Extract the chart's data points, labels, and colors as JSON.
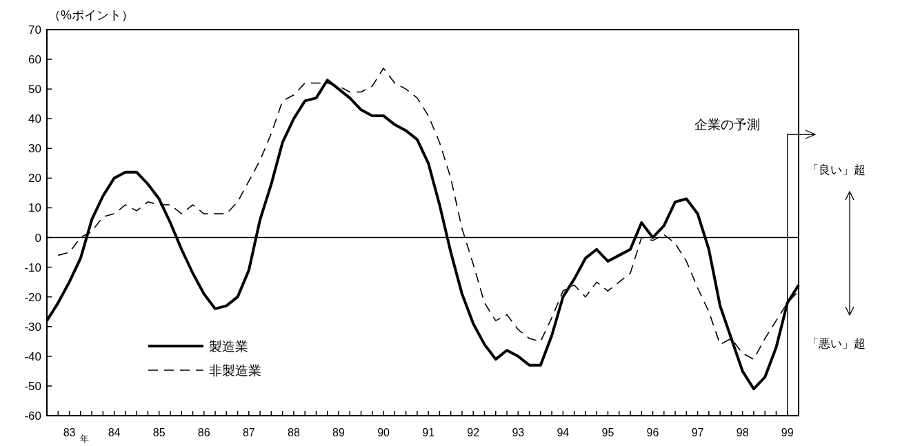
{
  "chart_data": {
    "type": "line",
    "ylabel": "（%ポイント）",
    "x": [
      83,
      83.25,
      83.5,
      83.75,
      84,
      84.25,
      84.5,
      84.75,
      85,
      85.25,
      85.5,
      85.75,
      86,
      86.25,
      86.5,
      86.75,
      87,
      87.25,
      87.5,
      87.75,
      88,
      88.25,
      88.5,
      88.75,
      89,
      89.25,
      89.5,
      89.75,
      90,
      90.25,
      90.5,
      90.75,
      91,
      91.25,
      91.5,
      91.75,
      92,
      92.25,
      92.5,
      92.75,
      93,
      93.25,
      93.5,
      93.75,
      94,
      94.25,
      94.5,
      94.75,
      95,
      95.25,
      95.5,
      95.75,
      96,
      96.25,
      96.5,
      96.75,
      97,
      97.25,
      97.5,
      97.75,
      98,
      98.25,
      98.5,
      98.75,
      99,
      99.25,
      99.5,
      99.75
    ],
    "series": [
      {
        "name": "製造業",
        "color": "#000000",
        "line_style": "solid",
        "values": [
          -28,
          -22,
          -15,
          -7,
          6,
          14,
          20,
          22,
          22,
          18,
          13,
          5,
          -4,
          -12,
          -19,
          -24,
          -23,
          -20,
          -11,
          6,
          18,
          32,
          40,
          46,
          47,
          53,
          50,
          47,
          43,
          41,
          41,
          38,
          36,
          33,
          25,
          11,
          -5,
          -19,
          -29,
          -36,
          -41,
          -38,
          -40,
          -43,
          -43,
          -33,
          -20,
          -14,
          -7,
          -4,
          -8,
          -6,
          -4,
          5,
          0,
          4,
          12,
          13,
          8,
          -4,
          -23,
          -34,
          -45,
          -51,
          -47,
          -37,
          -22,
          -16
        ]
      },
      {
        "name": "非製造業",
        "color": "#000000",
        "line_style": "dashed",
        "values": [
          null,
          -6,
          -5,
          0,
          2,
          7,
          8,
          11,
          9,
          12,
          11,
          11,
          8,
          11,
          8,
          8,
          8,
          12,
          19,
          26,
          35,
          46,
          48,
          52,
          52,
          52,
          51,
          49,
          49,
          51,
          57,
          52,
          50,
          47,
          41,
          32,
          20,
          3,
          -9,
          -22,
          -28,
          -26,
          -31,
          -34,
          -35,
          -27,
          -18,
          -16,
          -20,
          -15,
          -18,
          -15,
          -12,
          0,
          -1,
          1,
          -2,
          -8,
          -17,
          -25,
          -36,
          -34,
          -39,
          -41,
          -34,
          -28,
          -22,
          -18
        ]
      }
    ],
    "xlim": [
      83,
      99.75
    ],
    "xticks": [
      {
        "value": 83,
        "label": null
      },
      {
        "value": 83.25,
        "label": null
      },
      {
        "value": 83.5,
        "label": "83"
      },
      {
        "value": 83.75,
        "label": null
      },
      {
        "value": 84,
        "label": null
      },
      {
        "value": 84.25,
        "label": null
      },
      {
        "value": 84.5,
        "label": "84"
      },
      {
        "value": 84.75,
        "label": null
      },
      {
        "value": 85,
        "label": null
      },
      {
        "value": 85.25,
        "label": null
      },
      {
        "value": 85.5,
        "label": "85"
      },
      {
        "value": 85.75,
        "label": null
      },
      {
        "value": 86,
        "label": null
      },
      {
        "value": 86.25,
        "label": null
      },
      {
        "value": 86.5,
        "label": "86"
      },
      {
        "value": 86.75,
        "label": null
      },
      {
        "value": 87,
        "label": null
      },
      {
        "value": 87.25,
        "label": null
      },
      {
        "value": 87.5,
        "label": "87"
      },
      {
        "value": 87.75,
        "label": null
      },
      {
        "value": 88,
        "label": null
      },
      {
        "value": 88.25,
        "label": null
      },
      {
        "value": 88.5,
        "label": "88"
      },
      {
        "value": 88.75,
        "label": null
      },
      {
        "value": 89,
        "label": null
      },
      {
        "value": 89.25,
        "label": null
      },
      {
        "value": 89.5,
        "label": "89"
      },
      {
        "value": 89.75,
        "label": null
      },
      {
        "value": 90,
        "label": null
      },
      {
        "value": 90.25,
        "label": null
      },
      {
        "value": 90.5,
        "label": "90"
      },
      {
        "value": 90.75,
        "label": null
      },
      {
        "value": 91,
        "label": null
      },
      {
        "value": 91.25,
        "label": null
      },
      {
        "value": 91.5,
        "label": "91"
      },
      {
        "value": 91.75,
        "label": null
      },
      {
        "value": 92,
        "label": null
      },
      {
        "value": 92.25,
        "label": null
      },
      {
        "value": 92.5,
        "label": "92"
      },
      {
        "value": 92.75,
        "label": null
      },
      {
        "value": 93,
        "label": null
      },
      {
        "value": 93.25,
        "label": null
      },
      {
        "value": 93.5,
        "label": "93"
      },
      {
        "value": 93.75,
        "label": null
      },
      {
        "value": 94,
        "label": null
      },
      {
        "value": 94.25,
        "label": null
      },
      {
        "value": 94.5,
        "label": "94"
      },
      {
        "value": 94.75,
        "label": null
      },
      {
        "value": 95,
        "label": null
      },
      {
        "value": 95.25,
        "label": null
      },
      {
        "value": 95.5,
        "label": "95"
      },
      {
        "value": 95.75,
        "label": null
      },
      {
        "value": 96,
        "label": null
      },
      {
        "value": 96.25,
        "label": null
      },
      {
        "value": 96.5,
        "label": "96"
      },
      {
        "value": 96.75,
        "label": null
      },
      {
        "value": 97,
        "label": null
      },
      {
        "value": 97.25,
        "label": null
      },
      {
        "value": 97.5,
        "label": "97"
      },
      {
        "value": 97.75,
        "label": null
      },
      {
        "value": 98,
        "label": null
      },
      {
        "value": 98.25,
        "label": null
      },
      {
        "value": 98.5,
        "label": "98"
      },
      {
        "value": 98.75,
        "label": null
      },
      {
        "value": 99,
        "label": null
      },
      {
        "value": 99.25,
        "label": null
      },
      {
        "value": 99.5,
        "label": "99"
      }
    ],
    "ylim": [
      -60,
      70
    ],
    "yticks": [
      -60,
      -50,
      -40,
      -30,
      -20,
      -10,
      0,
      10,
      20,
      30,
      40,
      50,
      60,
      70
    ],
    "ref_lines": [
      {
        "axis": "y",
        "value": 0,
        "color": "#000000",
        "line_style": "solid"
      }
    ],
    "annotations": [
      "企業の予測",
      "「良い」超",
      "「悪い」超",
      "年"
    ],
    "legend": "bottom left",
    "grid": false,
    "marker": "none"
  }
}
